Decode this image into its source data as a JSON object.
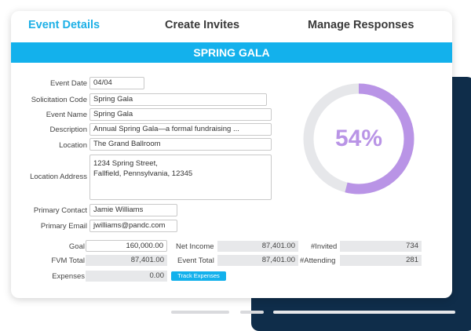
{
  "tabs": [
    {
      "label": "Event Details",
      "active": true
    },
    {
      "label": "Create Invites",
      "active": false
    },
    {
      "label": "Manage Responses",
      "active": false
    }
  ],
  "banner": {
    "title": "SPRING GALA"
  },
  "form": {
    "event_date": {
      "label": "Event Date",
      "value": "04/04"
    },
    "solicitation_code": {
      "label": "Solicitation Code",
      "value": "Spring Gala"
    },
    "event_name": {
      "label": "Event Name",
      "value": "Spring Gala"
    },
    "description": {
      "label": "Description",
      "value": "Annual Spring Gala—a formal fundraising ..."
    },
    "location": {
      "label": "Location",
      "value": "The Grand Ballroom"
    },
    "location_address": {
      "label": "Location Address",
      "line1": "1234 Spring Street,",
      "line2": "Fallfield, Pennsylvania, 12345"
    },
    "primary_contact": {
      "label": "Primary Contact",
      "value": "Jamie Williams"
    },
    "primary_email": {
      "label": "Primary Email",
      "value": "jwilliams@pandc.com"
    }
  },
  "totals": {
    "goal": {
      "label": "Goal",
      "value": "160,000.00"
    },
    "fvm_total": {
      "label": "FVM Total",
      "value": "87,401.00"
    },
    "expenses": {
      "label": "Expenses",
      "value": "0.00"
    },
    "track_expenses": "Track Expenses",
    "net_income": {
      "label": "Net Income",
      "value": "87,401.00"
    },
    "event_total": {
      "label": "Event Total",
      "value": "87,401.00"
    },
    "invited": {
      "label": "#Invited",
      "value": "734"
    },
    "attending": {
      "label": "#Attending",
      "value": "281"
    }
  },
  "progress": {
    "label": "54%",
    "fraction": 0.54,
    "fill_color": "#b994e6",
    "track_color": "#e6e7ea"
  },
  "colors": {
    "accent": "#13b1ec",
    "navy": "#0f2d4a"
  }
}
